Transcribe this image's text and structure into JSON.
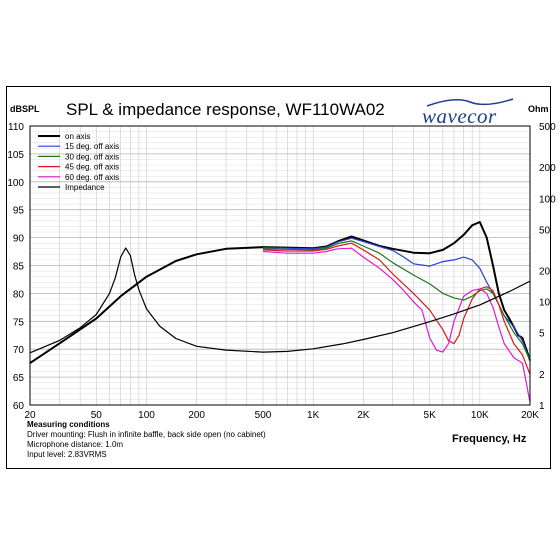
{
  "brand": {
    "name": "wavecor",
    "color": "#1d3f8f"
  },
  "conditions": {
    "heading": "Measuring conditions",
    "lines": [
      "Driver mounting: Flush in infinite baffle, back side open (no cabinet)",
      "Microphone distance: 1.0m",
      "Input level: 2.83VRMS"
    ]
  },
  "chart_data": {
    "type": "line",
    "title": "SPL & impedance response, WF110WA02",
    "xlabel": "Frequency, Hz",
    "ylabel": "dBSPL",
    "y2label": "Ohm",
    "xscale": "log",
    "xlim": [
      20,
      20000
    ],
    "ylim": [
      60,
      110
    ],
    "y2scale": "log",
    "y2lim": [
      1,
      500
    ],
    "grid": true,
    "legend_position": "top-left",
    "x_ticks": [
      20,
      50,
      100,
      200,
      500,
      1000,
      2000,
      5000,
      10000,
      20000
    ],
    "x_tick_labels": [
      "20",
      "50",
      "100",
      "200",
      "500",
      "1K",
      "2K",
      "5K",
      "10K",
      "20K"
    ],
    "y_ticks": [
      60,
      65,
      70,
      75,
      80,
      85,
      90,
      95,
      100,
      105,
      110
    ],
    "y2_ticks": [
      1,
      2,
      5,
      10,
      20,
      50,
      100,
      200,
      500
    ],
    "y2_tick_labels": [
      "1",
      "2",
      "5",
      "10",
      "20",
      "50",
      "100",
      "200",
      "500"
    ],
    "series": [
      {
        "name": "on axis",
        "color": "#000000",
        "width": 2,
        "axis": "left",
        "points": [
          [
            20,
            67.5
          ],
          [
            30,
            71
          ],
          [
            50,
            75.5
          ],
          [
            70,
            79.5
          ],
          [
            100,
            83
          ],
          [
            150,
            85.8
          ],
          [
            200,
            87
          ],
          [
            300,
            88
          ],
          [
            500,
            88.3
          ],
          [
            700,
            88.2
          ],
          [
            1000,
            88.1
          ],
          [
            1200,
            88.4
          ],
          [
            1400,
            89.3
          ],
          [
            1700,
            90.2
          ],
          [
            2000,
            89.5
          ],
          [
            2500,
            88.5
          ],
          [
            3000,
            88
          ],
          [
            4000,
            87.3
          ],
          [
            5000,
            87.2
          ],
          [
            6000,
            87.8
          ],
          [
            7000,
            89
          ],
          [
            8000,
            90.5
          ],
          [
            9000,
            92.2
          ],
          [
            10000,
            92.8
          ],
          [
            11000,
            90
          ],
          [
            12000,
            85
          ],
          [
            13000,
            80
          ],
          [
            14000,
            77
          ],
          [
            15000,
            75.5
          ],
          [
            16000,
            74
          ],
          [
            17000,
            72.5
          ],
          [
            18000,
            72
          ],
          [
            19000,
            70
          ],
          [
            20000,
            68
          ]
        ]
      },
      {
        "name": "15 deg. off axis",
        "color": "#2a3fd8",
        "width": 1.2,
        "axis": "left",
        "points": [
          [
            500,
            88.2
          ],
          [
            700,
            88.1
          ],
          [
            1000,
            88
          ],
          [
            1200,
            88.3
          ],
          [
            1400,
            89.2
          ],
          [
            1700,
            89.9
          ],
          [
            2000,
            89.3
          ],
          [
            2500,
            88.4
          ],
          [
            3000,
            87.7
          ],
          [
            3500,
            86.5
          ],
          [
            4000,
            85.3
          ],
          [
            5000,
            84.9
          ],
          [
            6000,
            85.7
          ],
          [
            7000,
            86
          ],
          [
            8000,
            86.5
          ],
          [
            9000,
            86
          ],
          [
            10000,
            84.5
          ],
          [
            11000,
            82
          ],
          [
            12000,
            80
          ],
          [
            13000,
            78
          ],
          [
            14000,
            76
          ],
          [
            16000,
            74
          ],
          [
            18000,
            71.5
          ],
          [
            20000,
            68
          ]
        ]
      },
      {
        "name": "30 deg. off axis",
        "color": "#1a7a1a",
        "width": 1.2,
        "axis": "left",
        "points": [
          [
            500,
            88
          ],
          [
            700,
            87.9
          ],
          [
            1000,
            87.8
          ],
          [
            1200,
            88.1
          ],
          [
            1400,
            88.9
          ],
          [
            1700,
            89.4
          ],
          [
            2000,
            88.5
          ],
          [
            2500,
            87.2
          ],
          [
            3000,
            85.5
          ],
          [
            4000,
            83.3
          ],
          [
            5000,
            81.7
          ],
          [
            6000,
            80
          ],
          [
            7000,
            79.2
          ],
          [
            8000,
            78.8
          ],
          [
            9000,
            79.5
          ],
          [
            10000,
            80.5
          ],
          [
            11000,
            80.8
          ],
          [
            12000,
            80
          ],
          [
            13000,
            78
          ],
          [
            14000,
            76
          ],
          [
            16000,
            73
          ],
          [
            18000,
            71
          ],
          [
            20000,
            68
          ]
        ]
      },
      {
        "name": "45 deg. off axis",
        "color": "#d81a1a",
        "width": 1.2,
        "axis": "left",
        "points": [
          [
            500,
            87.8
          ],
          [
            700,
            87.6
          ],
          [
            1000,
            87.6
          ],
          [
            1200,
            87.9
          ],
          [
            1400,
            88.5
          ],
          [
            1700,
            89
          ],
          [
            2000,
            87.8
          ],
          [
            2500,
            86
          ],
          [
            3000,
            83.5
          ],
          [
            4000,
            80
          ],
          [
            5000,
            77
          ],
          [
            6000,
            73.5
          ],
          [
            6500,
            71.5
          ],
          [
            7000,
            71
          ],
          [
            7500,
            72.5
          ],
          [
            8000,
            75.5
          ],
          [
            9000,
            79
          ],
          [
            10000,
            80.8
          ],
          [
            11000,
            81.2
          ],
          [
            12000,
            80.5
          ],
          [
            13000,
            78
          ],
          [
            14000,
            75
          ],
          [
            16000,
            71
          ],
          [
            18000,
            69
          ],
          [
            20000,
            65.5
          ]
        ]
      },
      {
        "name": "60 deg. off axis",
        "color": "#e01ad0",
        "width": 1.2,
        "axis": "left",
        "points": [
          [
            500,
            87.5
          ],
          [
            700,
            87.2
          ],
          [
            1000,
            87.2
          ],
          [
            1200,
            87.5
          ],
          [
            1400,
            88
          ],
          [
            1700,
            88.1
          ],
          [
            2000,
            86.5
          ],
          [
            2500,
            84.5
          ],
          [
            3000,
            82.5
          ],
          [
            3500,
            80.5
          ],
          [
            4000,
            78.5
          ],
          [
            4500,
            77
          ],
          [
            5000,
            72
          ],
          [
            5500,
            69.8
          ],
          [
            6000,
            69.5
          ],
          [
            6500,
            71
          ],
          [
            7000,
            75
          ],
          [
            8000,
            79.5
          ],
          [
            9000,
            80.5
          ],
          [
            10000,
            80.8
          ],
          [
            11000,
            80
          ],
          [
            12000,
            77.5
          ],
          [
            13000,
            74
          ],
          [
            14000,
            71
          ],
          [
            16000,
            68.5
          ],
          [
            18000,
            67.5
          ],
          [
            19000,
            64
          ],
          [
            20000,
            60.5
          ]
        ]
      },
      {
        "name": "Impedance",
        "color": "#000000",
        "width": 1.2,
        "axis": "right",
        "points": [
          [
            20,
            3.2
          ],
          [
            30,
            4.2
          ],
          [
            40,
            5.6
          ],
          [
            50,
            7.5
          ],
          [
            60,
            12
          ],
          [
            65,
            17
          ],
          [
            70,
            27
          ],
          [
            75,
            33
          ],
          [
            80,
            28
          ],
          [
            85,
            18
          ],
          [
            90,
            13
          ],
          [
            100,
            8.5
          ],
          [
            120,
            5.8
          ],
          [
            150,
            4.4
          ],
          [
            200,
            3.7
          ],
          [
            300,
            3.4
          ],
          [
            500,
            3.25
          ],
          [
            700,
            3.3
          ],
          [
            1000,
            3.5
          ],
          [
            1500,
            3.9
          ],
          [
            2000,
            4.3
          ],
          [
            3000,
            5
          ],
          [
            5000,
            6.4
          ],
          [
            7000,
            7.6
          ],
          [
            10000,
            9.3
          ],
          [
            15000,
            12.5
          ],
          [
            20000,
            15.8
          ]
        ]
      }
    ]
  }
}
